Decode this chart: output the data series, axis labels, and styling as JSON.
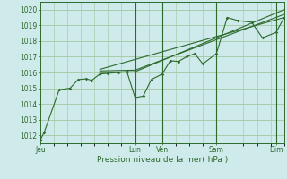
{
  "title": "Pression niveau de la mer( hPa )",
  "bg_color": "#ceeaea",
  "line_color": "#2d6a2d",
  "grid_color": "#a8ccaa",
  "ylim": [
    1011.5,
    1020.5
  ],
  "yticks": [
    1012,
    1013,
    1014,
    1015,
    1016,
    1017,
    1018,
    1019,
    1020
  ],
  "xtick_labels": [
    "Jeu",
    "Lun",
    "Ven",
    "Sam",
    "Dim"
  ],
  "xtick_positions": [
    0.0,
    3.5,
    4.5,
    6.5,
    8.7
  ],
  "xvlines": [
    3.5,
    4.5,
    6.5,
    8.7
  ],
  "xlim": [
    0.0,
    9.0
  ],
  "detail_x": [
    0.0,
    0.15,
    0.7,
    1.1,
    1.4,
    1.7,
    1.9,
    2.2,
    2.5,
    2.9,
    3.2,
    3.5,
    3.8,
    4.1,
    4.5,
    4.8,
    5.1,
    5.4,
    5.7,
    6.0,
    6.5,
    6.9,
    7.3,
    7.8,
    8.2,
    8.7,
    9.0
  ],
  "detail_y": [
    1011.7,
    1012.2,
    1014.9,
    1015.0,
    1015.55,
    1015.6,
    1015.5,
    1015.9,
    1015.95,
    1016.0,
    1016.05,
    1014.4,
    1014.5,
    1015.55,
    1015.9,
    1016.75,
    1016.7,
    1017.0,
    1017.2,
    1016.55,
    1017.2,
    1019.5,
    1019.3,
    1019.2,
    1018.2,
    1018.55,
    1019.5
  ],
  "trend1_x": [
    2.2,
    3.5,
    9.0
  ],
  "trend1_y": [
    1016.0,
    1016.05,
    1020.0
  ],
  "trend2_x": [
    2.2,
    3.5,
    9.0
  ],
  "trend2_y": [
    1016.1,
    1016.15,
    1019.7
  ],
  "trend3_x": [
    2.2,
    9.0
  ],
  "trend3_y": [
    1016.2,
    1019.5
  ]
}
